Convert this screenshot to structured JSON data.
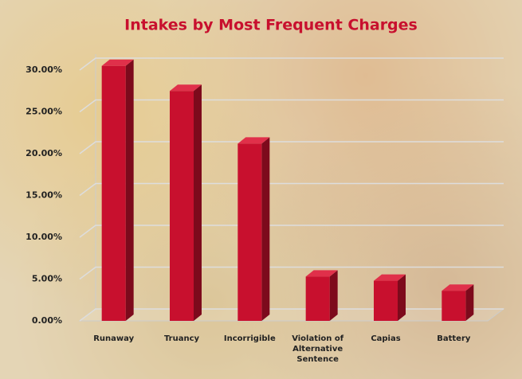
{
  "chart_data": {
    "type": "bar3d",
    "title": "Intakes by Most Frequent Charges",
    "categories": [
      "Runaway",
      "Truancy",
      "Incorrigible",
      "Violation of Alternative Sentence",
      "Capias",
      "Battery"
    ],
    "values": [
      30.5,
      27.5,
      21.2,
      5.3,
      4.8,
      3.6
    ],
    "color": "#c8102e",
    "ylim": [
      0,
      30
    ],
    "yticks": [
      {
        "value": 0,
        "label": "0.00%"
      },
      {
        "value": 5,
        "label": "5.00%"
      },
      {
        "value": 10,
        "label": "10.00%"
      },
      {
        "value": 15,
        "label": "15.00%"
      },
      {
        "value": 20,
        "label": "20.00%"
      },
      {
        "value": 25,
        "label": "25.00%"
      },
      {
        "value": 30,
        "label": "30.00%"
      }
    ],
    "grid": true
  }
}
